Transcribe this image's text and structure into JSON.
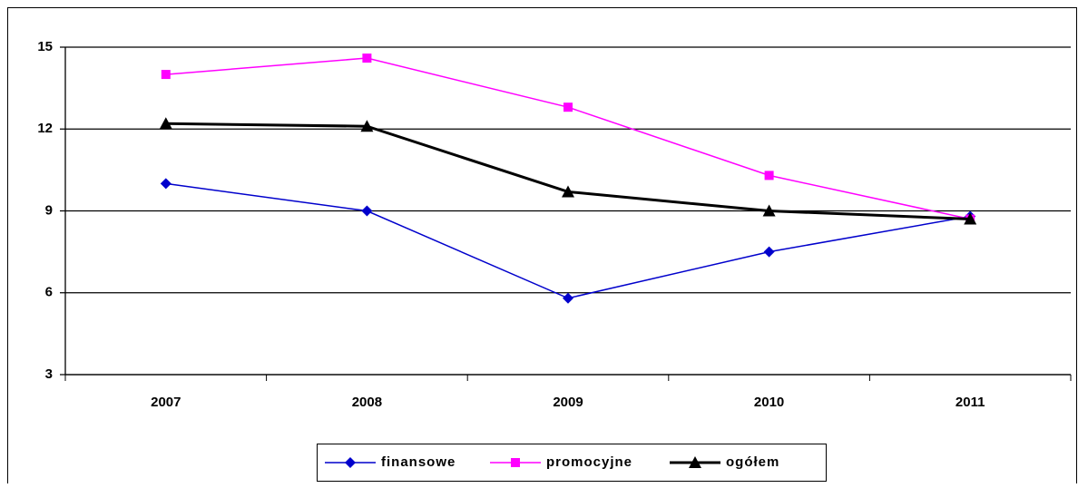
{
  "chart_data": {
    "type": "line",
    "categories": [
      "2007",
      "2008",
      "2009",
      "2010",
      "2011"
    ],
    "series": [
      {
        "name": "finansowe",
        "color": "#0000cc",
        "marker": "diamond",
        "values": [
          10.0,
          9.0,
          5.8,
          7.5,
          8.8
        ]
      },
      {
        "name": "promocyjne",
        "color": "#ff00ff",
        "marker": "square",
        "values": [
          14.0,
          14.6,
          12.8,
          10.3,
          8.7
        ]
      },
      {
        "name": "ogółem",
        "color": "#000000",
        "marker": "triangle",
        "values": [
          12.2,
          12.1,
          9.7,
          9.0,
          8.7
        ]
      }
    ],
    "ylim": [
      3,
      15
    ],
    "yticks": [
      3,
      6,
      9,
      12,
      15
    ],
    "grid": true,
    "legend": "bottom"
  }
}
